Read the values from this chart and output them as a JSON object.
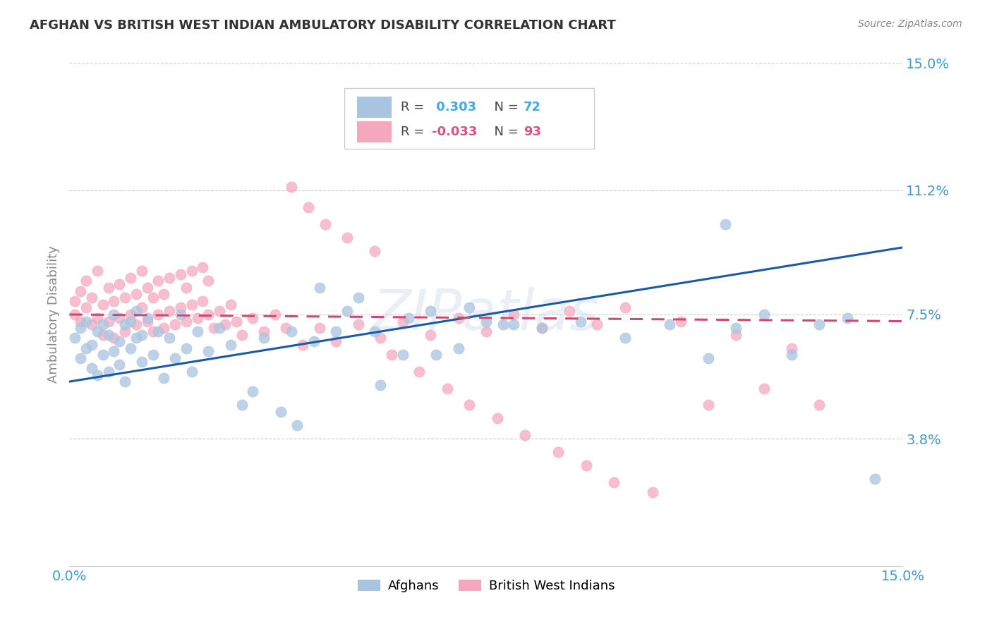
{
  "title": "AFGHAN VS BRITISH WEST INDIAN AMBULATORY DISABILITY CORRELATION CHART",
  "source": "Source: ZipAtlas.com",
  "ylabel": "Ambulatory Disability",
  "xmin": 0.0,
  "xmax": 0.15,
  "ymin": 0.0,
  "ymax": 0.15,
  "yticks": [
    0.038,
    0.075,
    0.112,
    0.15
  ],
  "ytick_labels": [
    "3.8%",
    "7.5%",
    "11.2%",
    "15.0%"
  ],
  "afghan_color": "#A8C4E0",
  "bwi_color": "#F4A8BE",
  "afghan_line_color": "#1A5BA8",
  "bwi_line_color": "#D44870",
  "watermark": "ZIPatlas",
  "afghan_scatter_x": [
    0.001,
    0.002,
    0.002,
    0.003,
    0.003,
    0.004,
    0.004,
    0.005,
    0.005,
    0.006,
    0.006,
    0.007,
    0.007,
    0.008,
    0.008,
    0.009,
    0.009,
    0.01,
    0.01,
    0.011,
    0.011,
    0.012,
    0.012,
    0.013,
    0.013,
    0.014,
    0.015,
    0.016,
    0.017,
    0.018,
    0.019,
    0.02,
    0.021,
    0.022,
    0.023,
    0.025,
    0.027,
    0.029,
    0.031,
    0.033,
    0.035,
    0.038,
    0.041,
    0.044,
    0.048,
    0.052,
    0.056,
    0.061,
    0.066,
    0.072,
    0.078,
    0.085,
    0.092,
    0.1,
    0.108,
    0.115,
    0.12,
    0.125,
    0.13,
    0.135,
    0.14,
    0.145,
    0.04,
    0.045,
    0.05,
    0.055,
    0.06,
    0.065,
    0.07,
    0.075,
    0.08,
    0.118
  ],
  "afghan_scatter_y": [
    0.068,
    0.062,
    0.071,
    0.065,
    0.073,
    0.059,
    0.066,
    0.057,
    0.07,
    0.063,
    0.072,
    0.058,
    0.069,
    0.064,
    0.075,
    0.06,
    0.067,
    0.055,
    0.072,
    0.065,
    0.073,
    0.068,
    0.076,
    0.061,
    0.069,
    0.074,
    0.063,
    0.07,
    0.056,
    0.068,
    0.062,
    0.075,
    0.065,
    0.058,
    0.07,
    0.064,
    0.071,
    0.066,
    0.048,
    0.052,
    0.068,
    0.046,
    0.042,
    0.067,
    0.07,
    0.08,
    0.054,
    0.074,
    0.063,
    0.077,
    0.072,
    0.071,
    0.073,
    0.068,
    0.072,
    0.062,
    0.071,
    0.075,
    0.063,
    0.072,
    0.074,
    0.026,
    0.07,
    0.083,
    0.076,
    0.07,
    0.063,
    0.076,
    0.065,
    0.073,
    0.072,
    0.102
  ],
  "bwi_scatter_x": [
    0.001,
    0.001,
    0.002,
    0.002,
    0.003,
    0.003,
    0.004,
    0.004,
    0.005,
    0.005,
    0.006,
    0.006,
    0.007,
    0.007,
    0.008,
    0.008,
    0.009,
    0.009,
    0.01,
    0.01,
    0.011,
    0.011,
    0.012,
    0.012,
    0.013,
    0.013,
    0.014,
    0.014,
    0.015,
    0.015,
    0.016,
    0.016,
    0.017,
    0.017,
    0.018,
    0.018,
    0.019,
    0.02,
    0.02,
    0.021,
    0.021,
    0.022,
    0.022,
    0.023,
    0.024,
    0.024,
    0.025,
    0.025,
    0.026,
    0.027,
    0.028,
    0.029,
    0.03,
    0.031,
    0.033,
    0.035,
    0.037,
    0.039,
    0.042,
    0.045,
    0.048,
    0.052,
    0.056,
    0.06,
    0.065,
    0.07,
    0.075,
    0.08,
    0.085,
    0.09,
    0.095,
    0.1,
    0.11,
    0.12,
    0.13,
    0.04,
    0.043,
    0.046,
    0.05,
    0.055,
    0.058,
    0.063,
    0.068,
    0.072,
    0.077,
    0.082,
    0.088,
    0.093,
    0.098,
    0.105,
    0.115,
    0.125,
    0.135
  ],
  "bwi_scatter_y": [
    0.075,
    0.079,
    0.073,
    0.082,
    0.077,
    0.085,
    0.072,
    0.08,
    0.074,
    0.088,
    0.069,
    0.078,
    0.073,
    0.083,
    0.068,
    0.079,
    0.074,
    0.084,
    0.07,
    0.08,
    0.075,
    0.086,
    0.072,
    0.081,
    0.077,
    0.088,
    0.073,
    0.083,
    0.07,
    0.08,
    0.075,
    0.085,
    0.071,
    0.081,
    0.076,
    0.086,
    0.072,
    0.077,
    0.087,
    0.073,
    0.083,
    0.078,
    0.088,
    0.074,
    0.079,
    0.089,
    0.075,
    0.085,
    0.071,
    0.076,
    0.072,
    0.078,
    0.073,
    0.069,
    0.074,
    0.07,
    0.075,
    0.071,
    0.066,
    0.071,
    0.067,
    0.072,
    0.068,
    0.073,
    0.069,
    0.074,
    0.07,
    0.075,
    0.071,
    0.076,
    0.072,
    0.077,
    0.073,
    0.069,
    0.065,
    0.113,
    0.107,
    0.102,
    0.098,
    0.094,
    0.063,
    0.058,
    0.053,
    0.048,
    0.044,
    0.039,
    0.034,
    0.03,
    0.025,
    0.022,
    0.048,
    0.053,
    0.048
  ],
  "afghan_line_x0": 0.0,
  "afghan_line_y0": 0.055,
  "afghan_line_x1": 0.15,
  "afghan_line_y1": 0.095,
  "bwi_line_x0": 0.0,
  "bwi_line_y0": 0.075,
  "bwi_line_x1": 0.15,
  "bwi_line_y1": 0.073
}
